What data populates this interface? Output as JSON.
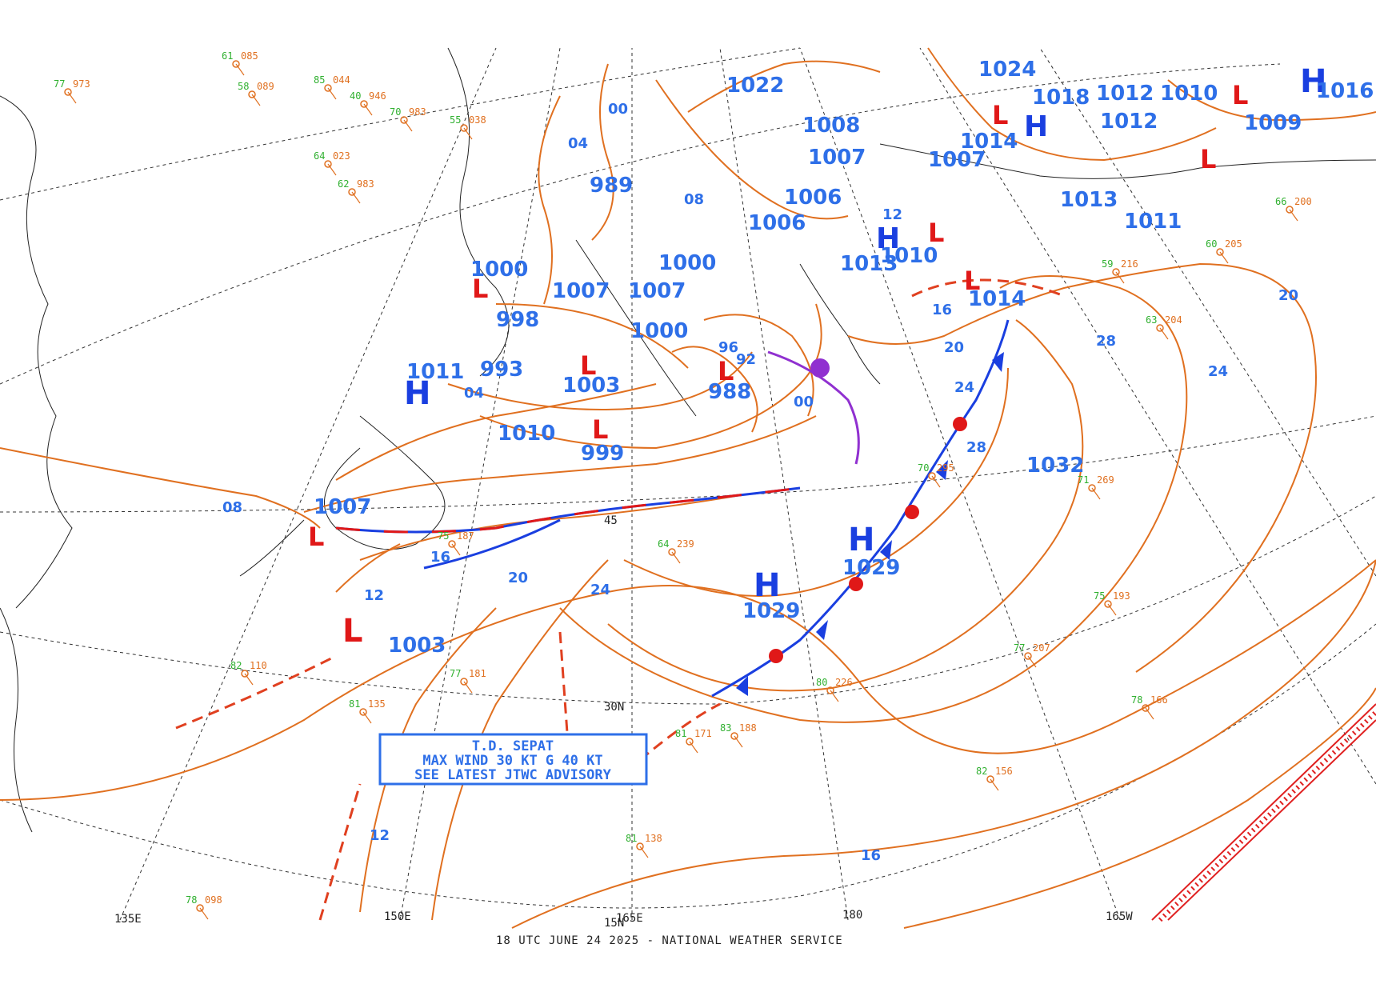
{
  "footer": "18 UTC JUNE 24 2025 - NATIONAL WEATHER SERVICE",
  "advisory": {
    "line1": "T.D. SEPAT",
    "line2": "MAX WIND 30 KT G 40 KT",
    "line3": "SEE LATEST JTWC ADVISORY"
  },
  "grid_labels": {
    "lon_135e": "135E",
    "lon_150e": "150E",
    "lon_165e": "165E",
    "lon_180": "180",
    "lon_165w": "165W",
    "lat_30n": "30N",
    "lat_45n": "45",
    "lat_15n": "15N"
  },
  "pressure_centers": [
    {
      "type": "H",
      "value": "1029",
      "label": "east high"
    },
    {
      "type": "H",
      "value": "1029",
      "label": "central high"
    },
    {
      "type": "H",
      "value": "1032",
      "label": "northeast high"
    },
    {
      "type": "H",
      "value": "1011",
      "label": "west high"
    },
    {
      "type": "H",
      "value": "1010",
      "label": "mid high"
    },
    {
      "type": "L",
      "value": "1003",
      "label": "sepat low"
    },
    {
      "type": "L",
      "value": "1007",
      "label": "japan low"
    },
    {
      "type": "L",
      "value": "999",
      "label": "okhotsk low"
    },
    {
      "type": "L",
      "value": "1003",
      "label": "sea low"
    },
    {
      "type": "L",
      "value": "988",
      "label": "aleutian low"
    },
    {
      "type": "L",
      "value": "1014",
      "label": "alaska low"
    },
    {
      "type": "L",
      "value": "1013",
      "label": "bering low"
    },
    {
      "type": "L",
      "value": "1010",
      "label": "bering low 2"
    },
    {
      "type": "L",
      "value": "1000",
      "label": "sakhalin low"
    },
    {
      "type": "L",
      "value": "998",
      "label": "amur low"
    },
    {
      "type": "L",
      "value": "993",
      "label": "kurile low"
    },
    {
      "type": "L",
      "value": "1007",
      "label": "okhotsk low 2"
    },
    {
      "type": "L",
      "value": "1007",
      "label": "kamchatka low"
    },
    {
      "type": "L",
      "value": "1000",
      "label": "kamchatka low 2"
    },
    {
      "type": "L",
      "value": "1000",
      "label": "kamchatka low 3"
    },
    {
      "type": "L",
      "value": "989",
      "label": "siberia low"
    },
    {
      "type": "L",
      "value": "1006",
      "label": "anadyr low"
    },
    {
      "type": "L",
      "value": "1006",
      "label": "anadyr low 2"
    },
    {
      "type": "L",
      "value": "1008",
      "label": "arctic low"
    },
    {
      "type": "L",
      "value": "1007",
      "label": "arctic low 2"
    },
    {
      "type": "L",
      "value": "1022",
      "label": "arctic high"
    },
    {
      "type": "L",
      "value": "1024",
      "label": "north high"
    },
    {
      "type": "L",
      "value": "1018",
      "label": "north low"
    },
    {
      "type": "L",
      "value": "1012",
      "label": "alaska n"
    },
    {
      "type": "L",
      "value": "1012",
      "label": "alaska n2"
    },
    {
      "type": "L",
      "value": "1010",
      "label": "alaska n3"
    },
    {
      "type": "L",
      "value": "1013",
      "label": "alaska s"
    },
    {
      "type": "L",
      "value": "1011",
      "label": "alaska s2"
    },
    {
      "type": "L",
      "value": "1009",
      "label": "alaska e"
    },
    {
      "type": "H",
      "value": "1016",
      "label": "canada high"
    },
    {
      "type": "L",
      "value": "1007",
      "label": "bering 1007"
    },
    {
      "type": "L",
      "value": "1014",
      "label": "bering 1014"
    }
  ],
  "isobar_labels": [
    "24",
    "20",
    "16",
    "12",
    "08",
    "04",
    "00",
    "96",
    "92",
    "28",
    "24",
    "20",
    "16",
    "12",
    "08",
    "04",
    "00",
    "28",
    "24",
    "20",
    "16",
    "12"
  ],
  "station_sample": [
    {
      "t": "77",
      "p": "973"
    },
    {
      "t": "58",
      "p": "089"
    },
    {
      "t": "61",
      "p": "085"
    },
    {
      "t": "85",
      "p": "044"
    },
    {
      "t": "40",
      "p": "946"
    },
    {
      "t": "70",
      "p": "983"
    },
    {
      "t": "55",
      "p": "038"
    },
    {
      "t": "64",
      "p": "023"
    },
    {
      "t": "62",
      "p": "983"
    },
    {
      "t": "75",
      "p": "187"
    },
    {
      "t": "77",
      "p": "181"
    },
    {
      "t": "81",
      "p": "135"
    },
    {
      "t": "83",
      "p": "188"
    },
    {
      "t": "81",
      "p": "171"
    },
    {
      "t": "80",
      "p": "226"
    },
    {
      "t": "77",
      "p": "207"
    },
    {
      "t": "78",
      "p": "166"
    },
    {
      "t": "82",
      "p": "156"
    },
    {
      "t": "75",
      "p": "193"
    },
    {
      "t": "81",
      "p": "138"
    },
    {
      "t": "70",
      "p": "295"
    },
    {
      "t": "71",
      "p": "269"
    },
    {
      "t": "63",
      "p": "204"
    },
    {
      "t": "60",
      "p": "205"
    },
    {
      "t": "66",
      "p": "200"
    },
    {
      "t": "82",
      "p": "110"
    },
    {
      "t": "64",
      "p": "239"
    },
    {
      "t": "78",
      "p": "098"
    },
    {
      "t": "59",
      "p": "216"
    }
  ],
  "colors": {
    "isobar": "#e07020",
    "pressure_label": "#2e6fe8",
    "cold_front": "#1a3fe0",
    "warm_front": "#e01818",
    "low_symbol": "#e01818",
    "high_symbol": "#1a3fe0"
  }
}
